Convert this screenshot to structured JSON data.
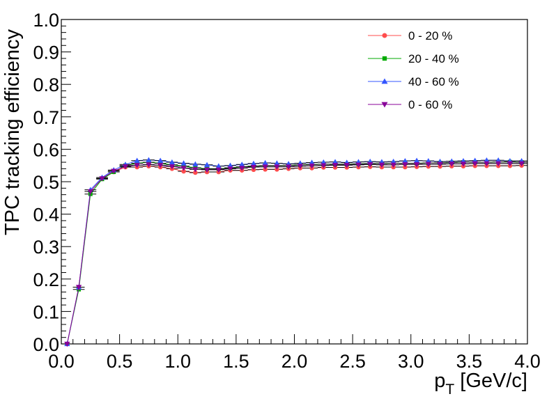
{
  "chart_data": {
    "type": "scatter",
    "xlabel": "p",
    "xlabel_sub": "T",
    "xlabel_unit": " [GeV/c]",
    "ylabel": "TPC tracking efficiency",
    "xlim": [
      0,
      4.0
    ],
    "ylim": [
      0,
      1.0
    ],
    "x_ticks": [
      "0.0",
      "0.5",
      "1.0",
      "1.5",
      "2.0",
      "2.5",
      "3.0",
      "3.5",
      "4.0"
    ],
    "y_ticks": [
      "0.0",
      "0.1",
      "0.2",
      "0.3",
      "0.4",
      "0.5",
      "0.6",
      "0.7",
      "0.8",
      "0.9",
      "1.0"
    ],
    "grid": false,
    "legend_position": "top-right",
    "x": [
      0.05,
      0.15,
      0.25,
      0.35,
      0.45,
      0.55,
      0.65,
      0.75,
      0.85,
      0.95,
      1.05,
      1.15,
      1.25,
      1.35,
      1.45,
      1.55,
      1.65,
      1.75,
      1.85,
      1.95,
      2.05,
      2.15,
      2.25,
      2.35,
      2.45,
      2.55,
      2.65,
      2.75,
      2.85,
      2.95,
      3.05,
      3.15,
      3.25,
      3.35,
      3.45,
      3.55,
      3.65,
      3.75,
      3.85,
      3.95
    ],
    "series": [
      {
        "name": "0 - 20 %",
        "color": "#ff4d4d",
        "marker": "circle",
        "values": [
          0.0,
          0.175,
          0.47,
          0.51,
          0.53,
          0.545,
          0.545,
          0.548,
          0.545,
          0.54,
          0.532,
          0.528,
          0.53,
          0.53,
          0.535,
          0.535,
          0.537,
          0.538,
          0.538,
          0.54,
          0.542,
          0.542,
          0.544,
          0.544,
          0.544,
          0.545,
          0.546,
          0.545,
          0.545,
          0.545,
          0.546,
          0.547,
          0.547,
          0.548,
          0.548,
          0.549,
          0.549,
          0.549,
          0.549,
          0.55
        ]
      },
      {
        "name": "20 - 40 %",
        "color": "#00aa00",
        "marker": "square",
        "values": [
          0.0,
          0.168,
          0.462,
          0.508,
          0.53,
          0.55,
          0.557,
          0.56,
          0.557,
          0.552,
          0.548,
          0.543,
          0.54,
          0.54,
          0.543,
          0.546,
          0.548,
          0.55,
          0.55,
          0.55,
          0.552,
          0.553,
          0.554,
          0.554,
          0.554,
          0.555,
          0.556,
          0.556,
          0.557,
          0.557,
          0.557,
          0.558,
          0.558,
          0.559,
          0.56,
          0.56,
          0.56,
          0.561,
          0.561,
          0.56
        ]
      },
      {
        "name": "40 - 60 %",
        "color": "#3355ff",
        "marker": "triangle-up",
        "values": [
          0.0,
          0.175,
          0.475,
          0.513,
          0.536,
          0.553,
          0.565,
          0.567,
          0.565,
          0.56,
          0.557,
          0.554,
          0.552,
          0.548,
          0.55,
          0.553,
          0.556,
          0.558,
          0.557,
          0.555,
          0.557,
          0.559,
          0.56,
          0.561,
          0.559,
          0.561,
          0.562,
          0.561,
          0.562,
          0.564,
          0.565,
          0.564,
          0.562,
          0.563,
          0.564,
          0.565,
          0.566,
          0.566,
          0.564,
          0.564
        ]
      },
      {
        "name": "0 - 60 %",
        "color": "#880099",
        "marker": "triangle-down",
        "values": [
          0.0,
          0.175,
          0.47,
          0.51,
          0.533,
          0.547,
          0.551,
          0.553,
          0.551,
          0.547,
          0.542,
          0.538,
          0.537,
          0.537,
          0.54,
          0.542,
          0.545,
          0.546,
          0.546,
          0.546,
          0.548,
          0.549,
          0.55,
          0.551,
          0.551,
          0.552,
          0.553,
          0.552,
          0.552,
          0.553,
          0.553,
          0.554,
          0.554,
          0.555,
          0.555,
          0.556,
          0.556,
          0.556,
          0.556,
          0.556
        ]
      }
    ]
  }
}
